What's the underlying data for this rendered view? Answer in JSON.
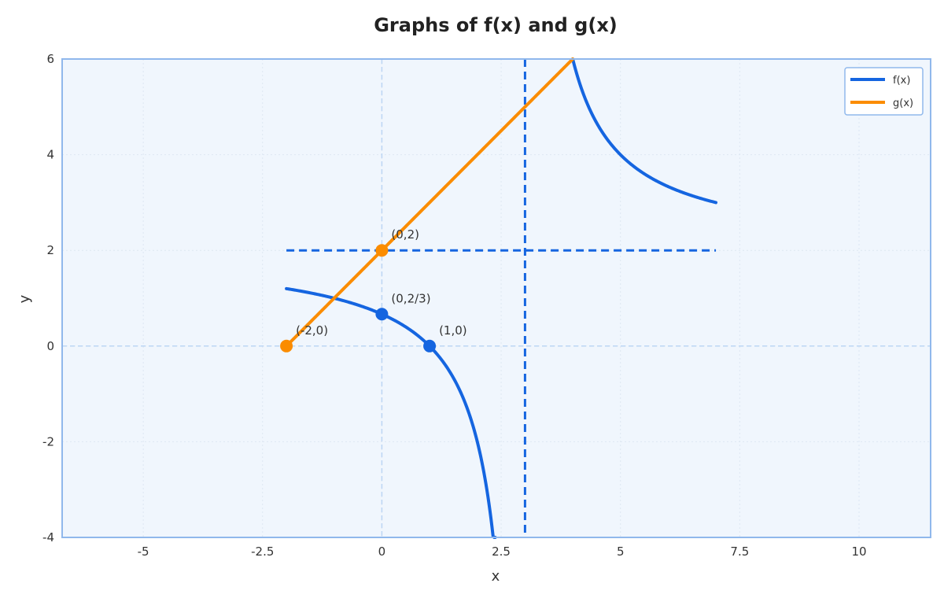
{
  "chart_data": {
    "type": "line",
    "title": "Graphs of f(x) and g(x)",
    "xlabel": "x",
    "ylabel": "y",
    "xlim": [
      -6.7,
      11.5
    ],
    "ylim": [
      -4,
      6
    ],
    "xticks": [
      -5,
      -2.5,
      0,
      2.5,
      5,
      7.5,
      10
    ],
    "xtick_labels": [
      "-5",
      "-2.5",
      "0",
      "2.5",
      "5",
      "7.5",
      "10"
    ],
    "yticks": [
      -4,
      -2,
      0,
      2,
      4,
      6
    ],
    "ytick_labels": [
      "-4",
      "-2",
      "0",
      "2",
      "4",
      "6"
    ],
    "grid": true,
    "legend_position": "top-right",
    "colors": {
      "f": "#1565e0",
      "g": "#fb8c00",
      "plot_bg": "#f0f6fd",
      "frame": "#90b8ec",
      "zero_lines": "#bcd6f4",
      "grid": "#dde7f2"
    },
    "series": [
      {
        "name": "f(x)",
        "formula": "(2x-2)/(x-3)",
        "segments": [
          {
            "x": [
              -2,
              -1.5,
              -1,
              -0.5,
              0,
              0.5,
              1,
              1.5,
              2,
              2.2,
              2.375
            ],
            "y": [
              1.2,
              1.111,
              1.0,
              0.857,
              0.667,
              0.4,
              0.0,
              -0.667,
              -2.0,
              -3.0,
              -4.0
            ]
          },
          {
            "x": [
              4,
              4.25,
              4.5,
              5,
              5.5,
              6,
              6.5,
              7
            ],
            "y": [
              6.0,
              5.2,
              4.667,
              4.0,
              3.6,
              3.333,
              3.143,
              3.0
            ]
          }
        ]
      },
      {
        "name": "g(x)",
        "formula": "x+2",
        "segments": [
          {
            "x": [
              -2,
              0,
              2,
              4
            ],
            "y": [
              0,
              2,
              4,
              6
            ]
          }
        ]
      }
    ],
    "asymptotes": [
      {
        "orientation": "vertical",
        "x": 3,
        "y_range": [
          -4,
          6
        ]
      },
      {
        "orientation": "horizontal",
        "y": 2,
        "x_range": [
          -2,
          7
        ]
      }
    ],
    "points": [
      {
        "series": "f",
        "x": 0,
        "y": 0.6667,
        "label": "(0,2/3)"
      },
      {
        "series": "f",
        "x": 1,
        "y": 0,
        "label": "(1,0)"
      },
      {
        "series": "g",
        "x": 0,
        "y": 2,
        "label": "(0,2)"
      },
      {
        "series": "g",
        "x": -2,
        "y": 0,
        "label": "(-2,0)"
      }
    ]
  }
}
